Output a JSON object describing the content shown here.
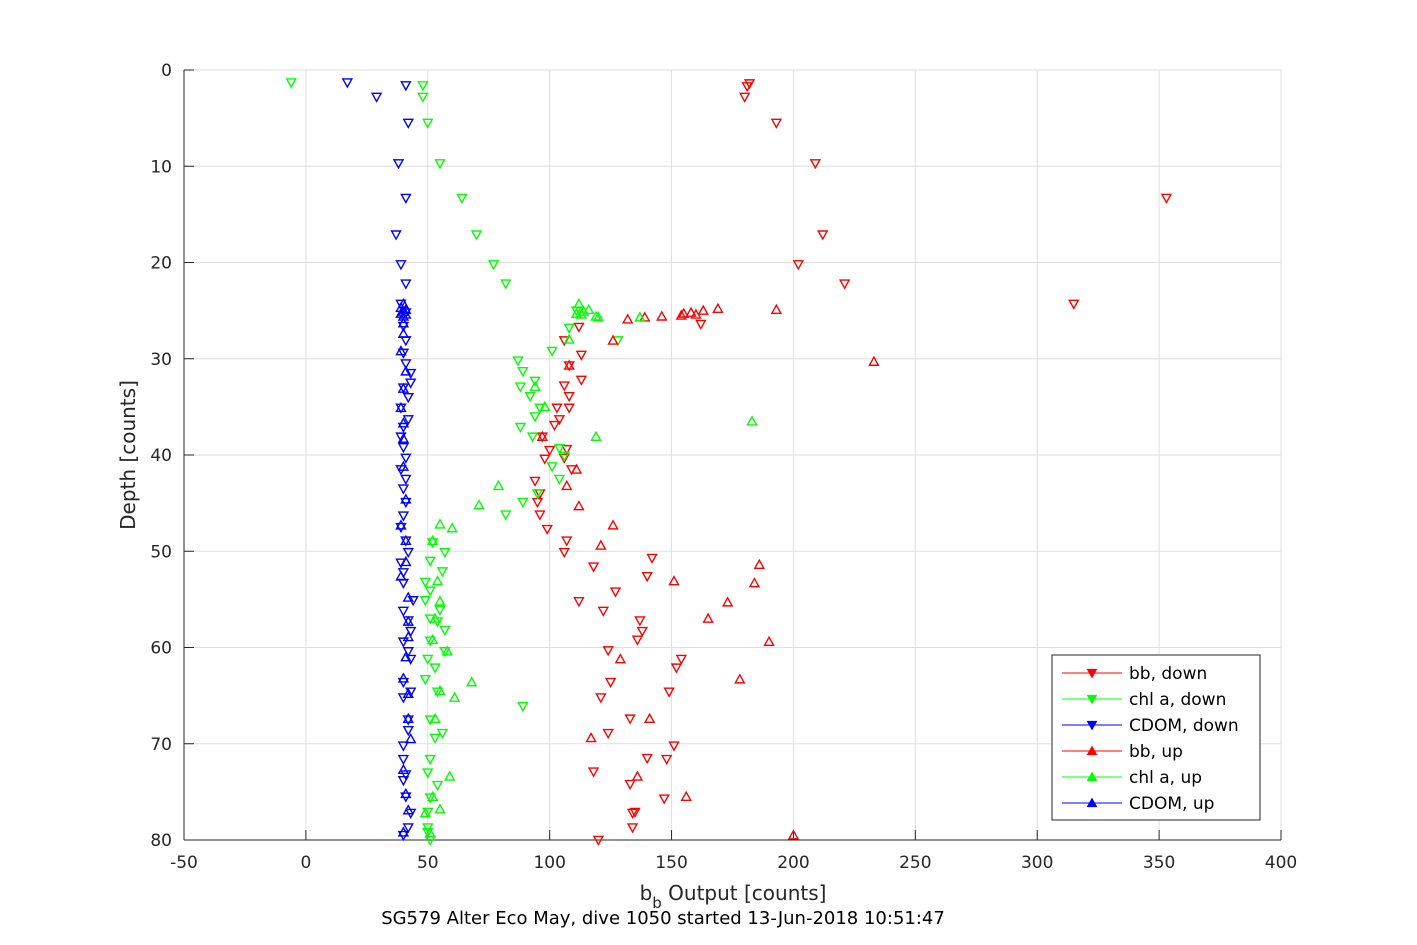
{
  "chart_data": {
    "type": "scatter",
    "title": "SG579 Alter Eco May, dive 1050 started 13-Jun-2018 10:51:47",
    "xlabel_main": "b",
    "xlabel_sub": "b",
    "xlabel_rest": " Output [counts]",
    "ylabel": "Depth [counts]",
    "xlim": [
      -50,
      400
    ],
    "ylim": [
      0,
      80
    ],
    "y_reversed": true,
    "grid": true,
    "legend_position": "bottom-right",
    "xticks": [
      "-50",
      "0",
      "50",
      "100",
      "150",
      "200",
      "250",
      "300",
      "350",
      "400"
    ],
    "yticks": [
      "0",
      "10",
      "20",
      "30",
      "40",
      "50",
      "60",
      "70",
      "80"
    ],
    "series": [
      {
        "name": "bb, down",
        "color": "#ff0000",
        "marker": "triangle-down",
        "points": [
          [
            182,
            1.4
          ],
          [
            181,
            1.7
          ],
          [
            180,
            2.8
          ],
          [
            193,
            5.5
          ],
          [
            209,
            9.7
          ],
          [
            353,
            13.3
          ],
          [
            212,
            17.1
          ],
          [
            202,
            20.2
          ],
          [
            221,
            22.2
          ],
          [
            315,
            24.3
          ],
          [
            162,
            26.4
          ],
          [
            112,
            26.7
          ],
          [
            106,
            28.1
          ],
          [
            113,
            29.6
          ],
          [
            108,
            30.7
          ],
          [
            113,
            32.2
          ],
          [
            106,
            32.8
          ],
          [
            108,
            33.9
          ],
          [
            103,
            35.1
          ],
          [
            108,
            35.1
          ],
          [
            104,
            36.3
          ],
          [
            102,
            36.9
          ],
          [
            97,
            38.1
          ],
          [
            107,
            39.4
          ],
          [
            100,
            39.5
          ],
          [
            106,
            40.3
          ],
          [
            98,
            40.4
          ],
          [
            109,
            41.5
          ],
          [
            94,
            42.7
          ],
          [
            96,
            44.0
          ],
          [
            95,
            44.9
          ],
          [
            96,
            46.2
          ],
          [
            99,
            47.7
          ],
          [
            107,
            48.9
          ],
          [
            106,
            50.1
          ],
          [
            142,
            50.7
          ],
          [
            118,
            51.6
          ],
          [
            140,
            52.6
          ],
          [
            127,
            54.2
          ],
          [
            112,
            55.2
          ],
          [
            122,
            56.2
          ],
          [
            137,
            57.2
          ],
          [
            138,
            58.3
          ],
          [
            136,
            59.2
          ],
          [
            124,
            60.3
          ],
          [
            154,
            61.2
          ],
          [
            152,
            62.1
          ],
          [
            125,
            63.6
          ],
          [
            149,
            64.6
          ],
          [
            121,
            65.2
          ],
          [
            133,
            67.4
          ],
          [
            124,
            68.9
          ],
          [
            151,
            70.2
          ],
          [
            140,
            71.5
          ],
          [
            148,
            71.6
          ],
          [
            118,
            72.9
          ],
          [
            133,
            74.2
          ],
          [
            147,
            75.7
          ],
          [
            135,
            77.1
          ],
          [
            134,
            77.2
          ],
          [
            134,
            78.7
          ],
          [
            120,
            80.0
          ]
        ]
      },
      {
        "name": "chl a, down",
        "color": "#00ff00",
        "marker": "triangle-down",
        "points": [
          [
            -6,
            1.3
          ],
          [
            48,
            1.6
          ],
          [
            48,
            2.8
          ],
          [
            50,
            5.5
          ],
          [
            55,
            9.7
          ],
          [
            64,
            13.3
          ],
          [
            70,
            17.1
          ],
          [
            77,
            20.2
          ],
          [
            82,
            22.2
          ],
          [
            111,
            25.0
          ],
          [
            108,
            26.8
          ],
          [
            128,
            28.1
          ],
          [
            101,
            29.2
          ],
          [
            87,
            30.2
          ],
          [
            89,
            31.3
          ],
          [
            94,
            32.3
          ],
          [
            88,
            32.9
          ],
          [
            92,
            33.9
          ],
          [
            96,
            35.1
          ],
          [
            94,
            36.0
          ],
          [
            88,
            37.1
          ],
          [
            93,
            38.1
          ],
          [
            104,
            39.3
          ],
          [
            106,
            40.1
          ],
          [
            101,
            41.2
          ],
          [
            104,
            42.5
          ],
          [
            95,
            44.0
          ],
          [
            89,
            44.9
          ],
          [
            82,
            46.2
          ],
          [
            52,
            49.1
          ],
          [
            57,
            50.1
          ],
          [
            51,
            51.0
          ],
          [
            56,
            52.1
          ],
          [
            49,
            53.2
          ],
          [
            51,
            54.1
          ],
          [
            49,
            55.1
          ],
          [
            55,
            56.1
          ],
          [
            51,
            57.0
          ],
          [
            54,
            57.3
          ],
          [
            57,
            58.2
          ],
          [
            51,
            59.3
          ],
          [
            57,
            60.4
          ],
          [
            50,
            61.2
          ],
          [
            53,
            62.1
          ],
          [
            49,
            63.3
          ],
          [
            54,
            64.6
          ],
          [
            89,
            66.1
          ],
          [
            51,
            67.5
          ],
          [
            56,
            68.9
          ],
          [
            53,
            69.4
          ],
          [
            51,
            71.6
          ],
          [
            50,
            73.0
          ],
          [
            54,
            74.3
          ],
          [
            51,
            75.6
          ],
          [
            50,
            77.1
          ],
          [
            50,
            78.7
          ],
          [
            50,
            79.2
          ],
          [
            51,
            80.0
          ]
        ]
      },
      {
        "name": "CDOM, down",
        "color": "#0000ff",
        "marker": "triangle-down",
        "points": [
          [
            17,
            1.3
          ],
          [
            41,
            1.6
          ],
          [
            29,
            2.8
          ],
          [
            42,
            5.5
          ],
          [
            38,
            9.7
          ],
          [
            41,
            13.3
          ],
          [
            37,
            17.1
          ],
          [
            39,
            20.2
          ],
          [
            41,
            22.2
          ],
          [
            39,
            24.3
          ],
          [
            41,
            25.2
          ],
          [
            40,
            26.6
          ],
          [
            41,
            28.1
          ],
          [
            40,
            29.4
          ],
          [
            41,
            30.5
          ],
          [
            43,
            31.5
          ],
          [
            43,
            32.5
          ],
          [
            40,
            33.0
          ],
          [
            42,
            34.0
          ],
          [
            39,
            35.1
          ],
          [
            42,
            36.3
          ],
          [
            40,
            37.1
          ],
          [
            39,
            38.1
          ],
          [
            40,
            39.2
          ],
          [
            41,
            40.3
          ],
          [
            39,
            41.5
          ],
          [
            41,
            42.5
          ],
          [
            40,
            43.5
          ],
          [
            41,
            44.9
          ],
          [
            40,
            46.3
          ],
          [
            39,
            47.5
          ],
          [
            41,
            48.9
          ],
          [
            42,
            50.1
          ],
          [
            39,
            51.2
          ],
          [
            40,
            52.2
          ],
          [
            40,
            53.3
          ],
          [
            44,
            55.1
          ],
          [
            40,
            56.2
          ],
          [
            42,
            57.2
          ],
          [
            43,
            58.3
          ],
          [
            40,
            59.4
          ],
          [
            42,
            60.4
          ],
          [
            43,
            61.2
          ],
          [
            40,
            63.6
          ],
          [
            43,
            64.6
          ],
          [
            40,
            65.2
          ],
          [
            42,
            67.5
          ],
          [
            42,
            68.6
          ],
          [
            40,
            70.2
          ],
          [
            40,
            71.6
          ],
          [
            41,
            73.2
          ],
          [
            40,
            73.8
          ],
          [
            41,
            75.5
          ],
          [
            43,
            77.2
          ],
          [
            42,
            78.7
          ],
          [
            40,
            79.5
          ]
        ]
      },
      {
        "name": "bb, up",
        "color": "#ff0000",
        "marker": "triangle-up",
        "points": [
          [
            169,
            24.8
          ],
          [
            193,
            24.9
          ],
          [
            163,
            25.0
          ],
          [
            158,
            25.2
          ],
          [
            155,
            25.3
          ],
          [
            160,
            25.4
          ],
          [
            154,
            25.5
          ],
          [
            146,
            25.6
          ],
          [
            139,
            25.7
          ],
          [
            132,
            25.9
          ],
          [
            126,
            28.1
          ],
          [
            233,
            30.3
          ],
          [
            108,
            30.7
          ],
          [
            97,
            38.1
          ],
          [
            111,
            41.5
          ],
          [
            107,
            43.2
          ],
          [
            112,
            45.3
          ],
          [
            126,
            47.3
          ],
          [
            121,
            49.4
          ],
          [
            186,
            51.4
          ],
          [
            151,
            53.1
          ],
          [
            184,
            53.3
          ],
          [
            173,
            55.3
          ],
          [
            165,
            57.0
          ],
          [
            190,
            59.4
          ],
          [
            129,
            61.2
          ],
          [
            178,
            63.3
          ],
          [
            141,
            67.4
          ],
          [
            117,
            69.4
          ],
          [
            136,
            73.4
          ],
          [
            156,
            75.5
          ],
          [
            200,
            79.5
          ]
        ]
      },
      {
        "name": "chl a, up",
        "color": "#00ff00",
        "marker": "triangle-up",
        "points": [
          [
            112,
            24.3
          ],
          [
            116,
            24.9
          ],
          [
            114,
            25.1
          ],
          [
            111,
            25.3
          ],
          [
            113,
            25.4
          ],
          [
            119,
            25.6
          ],
          [
            120,
            25.7
          ],
          [
            137,
            25.7
          ],
          [
            108,
            28.0
          ],
          [
            94,
            32.9
          ],
          [
            98,
            35.0
          ],
          [
            183,
            36.5
          ],
          [
            119,
            38.1
          ],
          [
            79,
            43.2
          ],
          [
            71,
            45.2
          ],
          [
            55,
            47.2
          ],
          [
            60,
            47.6
          ],
          [
            52,
            48.9
          ],
          [
            54,
            53.1
          ],
          [
            55,
            55.2
          ],
          [
            53,
            57.0
          ],
          [
            52,
            59.2
          ],
          [
            58,
            60.4
          ],
          [
            68,
            63.6
          ],
          [
            61,
            65.2
          ],
          [
            55,
            64.5
          ],
          [
            53,
            67.4
          ],
          [
            59,
            73.4
          ],
          [
            52,
            75.5
          ],
          [
            55,
            76.8
          ],
          [
            49,
            77.2
          ],
          [
            51,
            79.3
          ]
        ]
      },
      {
        "name": "CDOM, up",
        "color": "#0000ff",
        "marker": "triangle-up",
        "points": [
          [
            40,
            24.3
          ],
          [
            39,
            24.7
          ],
          [
            41,
            24.9
          ],
          [
            40,
            25.1
          ],
          [
            39,
            25.3
          ],
          [
            41,
            25.4
          ],
          [
            40,
            25.6
          ],
          [
            40,
            26.3
          ],
          [
            40,
            27.4
          ],
          [
            39,
            29.2
          ],
          [
            41,
            31.3
          ],
          [
            40,
            33.1
          ],
          [
            39,
            35.1
          ],
          [
            40,
            36.7
          ],
          [
            40,
            38.3
          ],
          [
            40,
            41.2
          ],
          [
            41,
            44.6
          ],
          [
            39,
            47.3
          ],
          [
            41,
            48.9
          ],
          [
            41,
            51.1
          ],
          [
            39,
            52.6
          ],
          [
            42,
            54.8
          ],
          [
            42,
            57.3
          ],
          [
            42,
            58.9
          ],
          [
            41,
            61.0
          ],
          [
            40,
            63.2
          ],
          [
            42,
            64.8
          ],
          [
            42,
            67.4
          ],
          [
            43,
            69.5
          ],
          [
            40,
            72.7
          ],
          [
            41,
            75.2
          ],
          [
            42,
            76.9
          ],
          [
            40,
            79.2
          ]
        ]
      }
    ]
  }
}
